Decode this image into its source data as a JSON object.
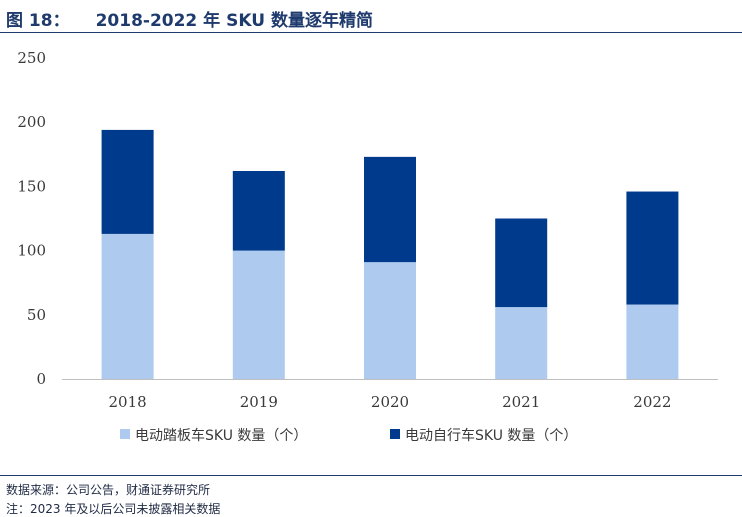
{
  "figure": {
    "number": "图 18：",
    "title": "2018-2022 年 SKU 数量逐年精简"
  },
  "chart_data": {
    "type": "bar",
    "stacked": true,
    "categories": [
      "2018",
      "2019",
      "2020",
      "2021",
      "2022"
    ],
    "series": [
      {
        "name": "电动踏板车SKU 数量（个）",
        "color": "#aecbef",
        "values": [
          113,
          100,
          91,
          56,
          58
        ]
      },
      {
        "name": "电动自行车SKU 数量（个）",
        "color": "#003a8c",
        "values": [
          81,
          62,
          82,
          69,
          88
        ]
      }
    ],
    "ylim": [
      0,
      250
    ],
    "yticks": [
      "0",
      "50",
      "100",
      "150",
      "200",
      "250"
    ],
    "grid": false,
    "legend_position": "bottom"
  },
  "footer": {
    "source": "数据来源：公司公告，财通证券研究所",
    "note": "注：2023 年及以后公司未披露相关数据"
  }
}
